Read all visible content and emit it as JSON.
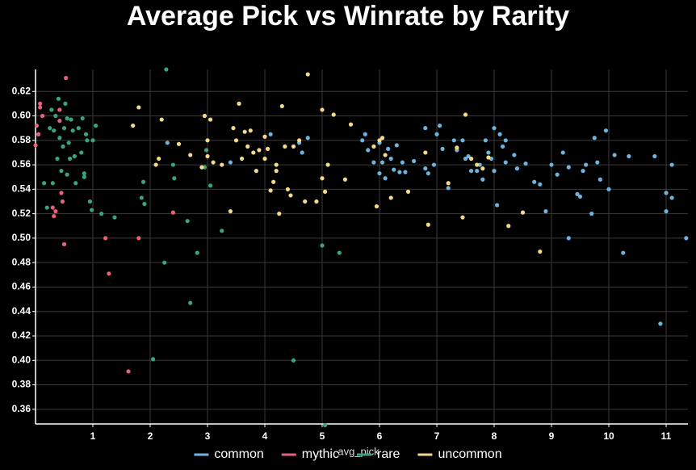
{
  "chart_data": {
    "type": "scatter",
    "title": "Average Pick vs Winrate by Rarity",
    "x_label": "avg_pick",
    "xlim": [
      0,
      11.38
    ],
    "ylim": [
      0.348,
      0.638
    ],
    "xticks": [
      1,
      2,
      3,
      4,
      5,
      6,
      7,
      8,
      9,
      10,
      11
    ],
    "yticks": [
      0.36,
      0.38,
      {
        "value": 0.4,
        "label": "0.40"
      },
      0.42,
      0.44,
      0.46,
      0.48,
      {
        "value": 0.5,
        "label": "0.50"
      },
      0.52,
      0.54,
      0.56,
      0.58,
      {
        "value": 0.6,
        "label": "0.60"
      },
      0.62
    ],
    "grid": true,
    "legend": "bottom",
    "series": [
      {
        "name": "common",
        "color": "#6fb3dc",
        "x": [
          2.3,
          3.4,
          4.1,
          4.6,
          4.65,
          4.75,
          5.7,
          5.75,
          5.8,
          5.9,
          6.0,
          6.0,
          6.05,
          6.1,
          6.15,
          6.2,
          6.25,
          6.3,
          6.35,
          6.4,
          6.45,
          6.6,
          6.8,
          6.8,
          6.85,
          6.95,
          7.0,
          7.05,
          7.1,
          7.2,
          7.3,
          7.35,
          7.45,
          7.5,
          7.55,
          7.6,
          7.7,
          7.75,
          7.8,
          7.85,
          7.9,
          8.0,
          8.0,
          8.05,
          8.1,
          8.15,
          8.2,
          8.35,
          8.4,
          8.55,
          8.7,
          8.8,
          8.9,
          9.0,
          9.1,
          9.2,
          9.3,
          9.3,
          9.45,
          9.5,
          9.55,
          9.6,
          9.7,
          9.75,
          9.8,
          9.85,
          9.95,
          10.0,
          10.1,
          10.25,
          10.35,
          10.8,
          10.9,
          11.0,
          11.0,
          11.1,
          11.1,
          11.35,
          7.95,
          8.2
        ],
        "values": [
          0.578,
          0.562,
          0.585,
          0.578,
          0.57,
          0.582,
          0.58,
          0.585,
          0.572,
          0.562,
          0.578,
          0.553,
          0.562,
          0.549,
          0.573,
          0.565,
          0.556,
          0.576,
          0.554,
          0.562,
          0.554,
          0.563,
          0.59,
          0.557,
          0.553,
          0.56,
          0.585,
          0.592,
          0.573,
          0.541,
          0.58,
          0.572,
          0.58,
          0.565,
          0.567,
          0.555,
          0.555,
          0.56,
          0.548,
          0.58,
          0.57,
          0.59,
          0.555,
          0.527,
          0.585,
          0.575,
          0.562,
          0.568,
          0.557,
          0.561,
          0.546,
          0.544,
          0.522,
          0.56,
          0.552,
          0.57,
          0.5,
          0.558,
          0.536,
          0.534,
          0.555,
          0.56,
          0.52,
          0.582,
          0.562,
          0.548,
          0.588,
          0.54,
          0.568,
          0.488,
          0.567,
          0.567,
          0.43,
          0.537,
          0.522,
          0.533,
          0.56,
          0.5,
          0.565,
          0.58
        ]
      },
      {
        "name": "mythic",
        "color": "#e8607a",
        "x": [
          0.0,
          0.02,
          0.05,
          0.08,
          0.08,
          0.12,
          0.3,
          0.32,
          0.35,
          0.42,
          0.42,
          0.45,
          0.47,
          0.5,
          0.53,
          1.22,
          1.28,
          1.62,
          1.8,
          2.4
        ],
        "values": [
          0.576,
          0.592,
          0.585,
          0.61,
          0.607,
          0.6,
          0.525,
          0.518,
          0.522,
          0.605,
          0.596,
          0.537,
          0.53,
          0.495,
          0.631,
          0.5,
          0.471,
          0.391,
          0.5,
          0.521
        ]
      },
      {
        "name": "rare",
        "color": "#3aa57a",
        "x": [
          0.25,
          0.28,
          0.3,
          0.32,
          0.35,
          0.38,
          0.4,
          0.42,
          0.45,
          0.48,
          0.5,
          0.52,
          0.55,
          0.55,
          0.58,
          0.6,
          0.62,
          0.65,
          0.68,
          0.7,
          0.75,
          0.8,
          0.82,
          0.85,
          0.85,
          0.88,
          0.9,
          0.95,
          0.98,
          1.0,
          1.05,
          1.15,
          1.38,
          1.85,
          1.88,
          1.9,
          2.05,
          2.25,
          2.28,
          2.4,
          2.42,
          2.65,
          2.7,
          2.82,
          2.95,
          2.98,
          3.05,
          3.25,
          4.5,
          5.0,
          5.05,
          5.3,
          0.15,
          0.2
        ],
        "values": [
          0.59,
          0.605,
          0.545,
          0.588,
          0.6,
          0.565,
          0.614,
          0.582,
          0.555,
          0.575,
          0.59,
          0.61,
          0.598,
          0.552,
          0.578,
          0.565,
          0.597,
          0.588,
          0.567,
          0.545,
          0.59,
          0.57,
          0.598,
          0.553,
          0.55,
          0.585,
          0.58,
          0.53,
          0.523,
          0.58,
          0.592,
          0.52,
          0.517,
          0.533,
          0.546,
          0.528,
          0.401,
          0.48,
          0.638,
          0.56,
          0.549,
          0.514,
          0.447,
          0.488,
          0.558,
          0.572,
          0.543,
          0.506,
          0.4,
          0.494,
          0.347,
          0.488,
          0.545,
          0.525
        ]
      },
      {
        "name": "uncommon",
        "color": "#f5d98b",
        "x": [
          1.7,
          1.8,
          2.1,
          2.15,
          2.2,
          2.5,
          2.7,
          2.9,
          2.95,
          3.0,
          3.0,
          3.05,
          3.1,
          3.4,
          3.45,
          3.5,
          3.55,
          3.6,
          3.65,
          3.7,
          3.75,
          3.8,
          3.85,
          3.9,
          4.0,
          4.0,
          4.05,
          4.1,
          4.15,
          4.2,
          4.2,
          4.25,
          4.3,
          4.35,
          4.4,
          4.5,
          4.6,
          4.7,
          4.75,
          5.0,
          5.0,
          5.05,
          5.1,
          5.2,
          5.4,
          5.5,
          5.9,
          5.95,
          6.0,
          6.05,
          6.1,
          6.2,
          6.5,
          6.8,
          6.85,
          7.2,
          7.35,
          7.45,
          7.5,
          7.6,
          7.7,
          7.8,
          7.9,
          8.25,
          8.5,
          8.8,
          4.45,
          4.9,
          3.25
        ],
        "values": [
          0.592,
          0.607,
          0.56,
          0.565,
          0.597,
          0.577,
          0.568,
          0.558,
          0.6,
          0.58,
          0.567,
          0.597,
          0.562,
          0.522,
          0.59,
          0.58,
          0.61,
          0.565,
          0.587,
          0.575,
          0.588,
          0.57,
          0.555,
          0.572,
          0.565,
          0.583,
          0.573,
          0.539,
          0.546,
          0.56,
          0.555,
          0.52,
          0.608,
          0.575,
          0.54,
          0.575,
          0.58,
          0.53,
          0.634,
          0.605,
          0.549,
          0.538,
          0.56,
          0.601,
          0.548,
          0.593,
          0.575,
          0.526,
          0.58,
          0.582,
          0.568,
          0.533,
          0.538,
          0.57,
          0.511,
          0.545,
          0.574,
          0.517,
          0.601,
          0.565,
          0.56,
          0.557,
          0.566,
          0.51,
          0.521,
          0.489,
          0.535,
          0.53,
          0.56
        ]
      }
    ]
  }
}
